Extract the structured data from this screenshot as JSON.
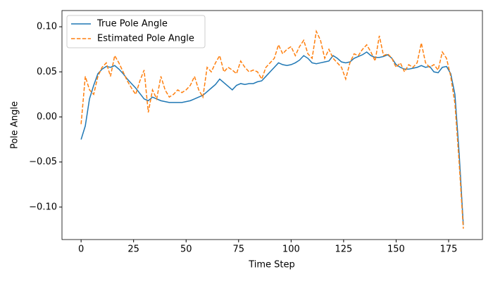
{
  "chart_data": {
    "type": "line",
    "xlabel": "Time Step",
    "ylabel": "Pole Angle",
    "x": [
      0,
      2,
      4,
      6,
      8,
      10,
      12,
      14,
      16,
      18,
      20,
      22,
      24,
      26,
      28,
      30,
      32,
      34,
      36,
      38,
      40,
      42,
      44,
      46,
      48,
      50,
      52,
      54,
      56,
      58,
      60,
      62,
      64,
      66,
      68,
      70,
      72,
      74,
      76,
      78,
      80,
      82,
      84,
      86,
      88,
      90,
      92,
      94,
      96,
      98,
      100,
      102,
      104,
      106,
      108,
      110,
      112,
      114,
      116,
      118,
      120,
      122,
      124,
      126,
      128,
      130,
      132,
      134,
      136,
      138,
      140,
      142,
      144,
      146,
      148,
      150,
      152,
      154,
      156,
      158,
      160,
      162,
      164,
      166,
      168,
      170,
      172,
      174,
      176,
      178,
      180,
      182
    ],
    "series": [
      {
        "name": "True Pole Angle",
        "color": "#1f77b4",
        "linestyle": "solid",
        "values": [
          -0.025,
          -0.01,
          0.02,
          0.035,
          0.048,
          0.053,
          0.056,
          0.055,
          0.057,
          0.053,
          0.048,
          0.042,
          0.037,
          0.032,
          0.026,
          0.02,
          0.018,
          0.022,
          0.02,
          0.018,
          0.017,
          0.016,
          0.016,
          0.016,
          0.016,
          0.017,
          0.018,
          0.02,
          0.022,
          0.024,
          0.028,
          0.032,
          0.036,
          0.042,
          0.038,
          0.034,
          0.03,
          0.035,
          0.037,
          0.036,
          0.037,
          0.037,
          0.039,
          0.04,
          0.045,
          0.05,
          0.055,
          0.06,
          0.058,
          0.057,
          0.058,
          0.06,
          0.063,
          0.068,
          0.065,
          0.06,
          0.059,
          0.06,
          0.061,
          0.062,
          0.068,
          0.065,
          0.061,
          0.06,
          0.061,
          0.065,
          0.067,
          0.069,
          0.072,
          0.068,
          0.066,
          0.066,
          0.067,
          0.069,
          0.065,
          0.058,
          0.055,
          0.053,
          0.053,
          0.054,
          0.055,
          0.057,
          0.055,
          0.056,
          0.05,
          0.049,
          0.055,
          0.056,
          0.048,
          0.025,
          -0.04,
          -0.12
        ]
      },
      {
        "name": "Estimated Pole Angle",
        "color": "#ff7f0e",
        "linestyle": "dashed",
        "values": [
          -0.008,
          0.045,
          0.03,
          0.025,
          0.045,
          0.055,
          0.06,
          0.045,
          0.068,
          0.06,
          0.05,
          0.04,
          0.032,
          0.025,
          0.04,
          0.052,
          0.005,
          0.03,
          0.02,
          0.045,
          0.03,
          0.022,
          0.025,
          0.03,
          0.027,
          0.03,
          0.035,
          0.045,
          0.03,
          0.022,
          0.055,
          0.05,
          0.06,
          0.068,
          0.05,
          0.055,
          0.052,
          0.048,
          0.062,
          0.055,
          0.05,
          0.052,
          0.05,
          0.042,
          0.055,
          0.06,
          0.065,
          0.08,
          0.07,
          0.075,
          0.078,
          0.068,
          0.078,
          0.085,
          0.07,
          0.065,
          0.095,
          0.085,
          0.065,
          0.075,
          0.065,
          0.06,
          0.055,
          0.042,
          0.06,
          0.07,
          0.068,
          0.075,
          0.08,
          0.072,
          0.062,
          0.09,
          0.068,
          0.07,
          0.065,
          0.055,
          0.06,
          0.05,
          0.058,
          0.055,
          0.06,
          0.082,
          0.06,
          0.055,
          0.058,
          0.052,
          0.072,
          0.065,
          0.045,
          0.015,
          -0.05,
          -0.124
        ]
      }
    ],
    "xlim": [
      -9.1,
      191.1
    ],
    "ylim": [
      -0.136,
      0.118
    ],
    "xticks": [
      0,
      25,
      50,
      75,
      100,
      125,
      150,
      175
    ],
    "yticks": [
      {
        "value": -0.1,
        "label": "−0.10"
      },
      {
        "value": -0.05,
        "label": "−0.05"
      },
      {
        "value": 0,
        "label": "0.00"
      },
      {
        "value": 0.05,
        "label": "0.05"
      },
      {
        "value": 0.1,
        "label": "0.10"
      }
    ],
    "legend": "upper left"
  }
}
